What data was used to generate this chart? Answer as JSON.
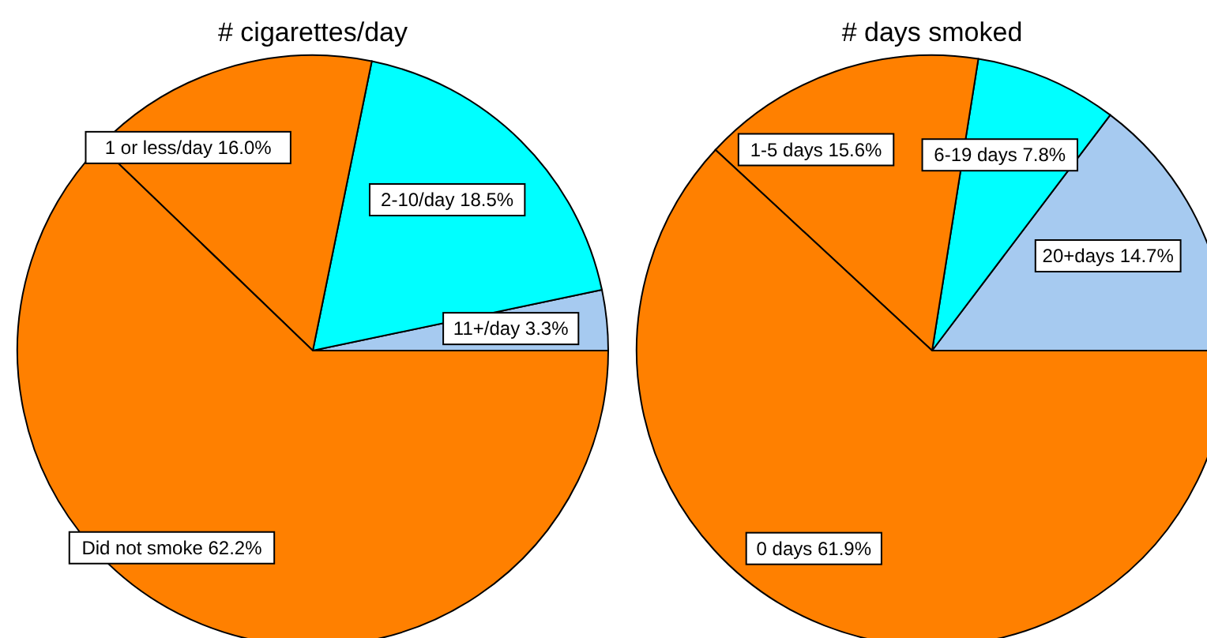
{
  "chart_data": [
    {
      "type": "pie",
      "title": "# cigarettes/day",
      "categories": [
        "11+/day",
        "2-10/day",
        "1 or less/day",
        "Did not smoke"
      ],
      "values": [
        3.3,
        18.5,
        16.0,
        62.2
      ],
      "colors": [
        "#a6caf0",
        "#00ffff",
        "#ff8000",
        "#ff8000"
      ],
      "value_labels": [
        "3.3%",
        "18.5%",
        "16.0%",
        "62.2%"
      ]
    },
    {
      "type": "pie",
      "title": "# days smoked",
      "categories": [
        "20+days",
        "6-19 days",
        "1-5 days",
        "0 days"
      ],
      "values": [
        14.7,
        7.8,
        15.6,
        61.9
      ],
      "colors": [
        "#a6caf0",
        "#00ffff",
        "#ff8000",
        "#ff8000"
      ],
      "value_labels": [
        "14.7%",
        "7.8%",
        "15.6%",
        "61.9%"
      ]
    }
  ]
}
